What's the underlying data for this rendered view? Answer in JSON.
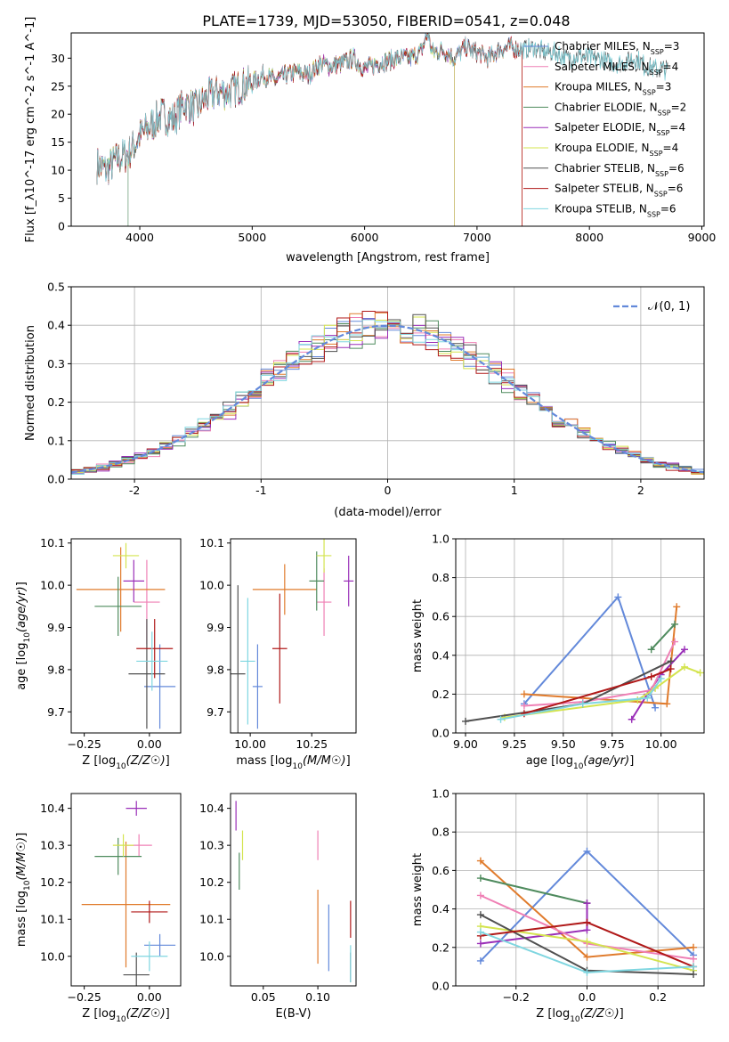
{
  "figure": {
    "title": "PLATE=1739, MJD=53050, FIBERID=0541, z=0.048"
  },
  "chart_data": [
    {
      "id": "spectrum",
      "type": "line",
      "xlabel": "wavelength [Angstrom, rest frame]",
      "ylabel": "Flux [f_λ10^-17 erg cm^-2 s^-1 A^-1]",
      "xlim": [
        3390,
        9020
      ],
      "ylim": [
        0,
        34.5
      ],
      "xticks": [
        4000,
        5000,
        6000,
        7000,
        8000,
        9000
      ],
      "yticks": [
        0,
        5,
        10,
        15,
        20,
        25,
        30
      ],
      "legend_position": "upper-right",
      "observed": {
        "color": "#808080",
        "x": [
          3620,
          3700,
          3800,
          3900,
          4000,
          4100,
          4200,
          4300,
          4400,
          4500,
          4600,
          4700,
          4800,
          4900,
          5000,
          5100,
          5200,
          5300,
          5400,
          5500,
          5600,
          5700,
          5800,
          5900,
          6000,
          6100,
          6200,
          6300,
          6400,
          6500,
          6563,
          6600,
          6700,
          6800,
          6900,
          7000,
          7100,
          7200,
          7300,
          7400,
          7500,
          7600,
          7700,
          7800,
          7900,
          8000,
          8100,
          8200,
          8300,
          8400,
          8500,
          8600,
          8700
        ],
        "values": [
          11,
          10,
          12,
          13,
          16,
          18,
          20,
          19,
          22,
          21,
          23,
          24,
          24,
          25,
          25.5,
          27,
          26,
          27,
          27.5,
          27,
          29,
          28.5,
          29,
          30,
          28,
          29,
          29.5,
          30,
          30,
          31,
          34.5,
          31,
          31.5,
          30,
          32,
          31,
          30,
          31.5,
          32,
          31.5,
          32,
          31,
          31,
          30,
          30.5,
          30,
          30,
          29,
          29,
          30,
          28.5,
          28,
          28
        ]
      },
      "series": [
        {
          "name": "Chabrier MILES, N_SSP=3",
          "color": "#6389da",
          "end_x": 7400
        },
        {
          "name": "Salpeter MILES, N_SSP=4",
          "color": "#ef80b5",
          "end_x": 7400
        },
        {
          "name": "Kroupa MILES, N_SSP=3",
          "color": "#e07b2c",
          "end_x": 7400
        },
        {
          "name": "Chabrier ELODIE, N_SSP=2",
          "color": "#4f8b5e",
          "end_x": 3900
        },
        {
          "name": "Salpeter ELODIE, N_SSP=4",
          "color": "#9a2fb8",
          "end_x": 6800
        },
        {
          "name": "Kroupa ELODIE, N_SSP=4",
          "color": "#d4e44f",
          "end_x": 6800
        },
        {
          "name": "Chabrier STELIB, N_SSP=6",
          "color": "#505050",
          "end_x": 8700
        },
        {
          "name": "Salpeter STELIB, N_SSP=6",
          "color": "#b01919",
          "end_x": 7400
        },
        {
          "name": "Kroupa STELIB, N_SSP=6",
          "color": "#7fd6e0",
          "end_x": 8700
        }
      ]
    },
    {
      "id": "residuals",
      "type": "line",
      "xlabel": "(data-model)/error",
      "ylabel": "Normed distribution",
      "xlim": [
        -2.5,
        2.5
      ],
      "ylim": [
        0,
        0.5
      ],
      "xticks": [
        -2,
        -1,
        0,
        1,
        2
      ],
      "yticks": [
        0.0,
        0.1,
        0.2,
        0.3,
        0.4,
        0.5
      ],
      "grid": true,
      "legend": "𝒩(0, 1)",
      "legend_position": "upper-right",
      "normal_curve": {
        "mean": 0,
        "sigma": 1,
        "color": "#6389da",
        "style": "dashed"
      },
      "histogram_bin_width": 0.1,
      "histogram_colors": [
        "#6389da",
        "#ef80b5",
        "#e07b2c",
        "#4f8b5e",
        "#9a2fb8",
        "#d4e44f",
        "#505050",
        "#b01919",
        "#7fd6e0"
      ]
    },
    {
      "id": "age-vs-metallicity",
      "type": "scatter",
      "xlabel": "Z [log10(Z/Z☉)]",
      "ylabel": "age [log10(age/yr)]",
      "xlim": [
        -0.3,
        0.12
      ],
      "ylim": [
        9.65,
        10.11
      ],
      "xticks": [
        -0.25,
        0.0
      ],
      "yticks": [
        9.7,
        9.8,
        9.9,
        10.0,
        10.1
      ],
      "points": [
        {
          "color": "#6389da",
          "x": 0.04,
          "xerr": 0.06,
          "y": 9.76,
          "yerr": 0.1
        },
        {
          "color": "#ef80b5",
          "x": -0.01,
          "xerr": 0.05,
          "y": 9.96,
          "yerr": 0.1
        },
        {
          "color": "#e07b2c",
          "x": -0.11,
          "xerr": 0.17,
          "y": 9.99,
          "yerr": 0.1
        },
        {
          "color": "#4f8b5e",
          "x": -0.12,
          "xerr": 0.09,
          "y": 9.95,
          "yerr": 0.07
        },
        {
          "color": "#9a2fb8",
          "x": -0.06,
          "xerr": 0.04,
          "y": 10.01,
          "yerr": 0.05
        },
        {
          "color": "#d4e44f",
          "x": -0.09,
          "xerr": 0.05,
          "y": 10.07,
          "yerr": 0.03
        },
        {
          "color": "#505050",
          "x": -0.01,
          "xerr": 0.07,
          "y": 9.79,
          "yerr": 0.13
        },
        {
          "color": "#b01919",
          "x": 0.02,
          "xerr": 0.07,
          "y": 9.85,
          "yerr": 0.07
        },
        {
          "color": "#7fd6e0",
          "x": 0.01,
          "xerr": 0.06,
          "y": 9.82,
          "yerr": 0.07
        }
      ]
    },
    {
      "id": "age-vs-mass",
      "type": "scatter",
      "xlabel": "mass [log10(M/M☉)]",
      "ylabel": "",
      "xlim": [
        9.92,
        10.43
      ],
      "ylim": [
        9.65,
        10.11
      ],
      "xticks": [
        10.0,
        10.25
      ],
      "yticks": [
        9.7,
        9.8,
        9.9,
        10.0,
        10.1
      ],
      "points": [
        {
          "color": "#6389da",
          "x": 10.03,
          "xerr": 0.02,
          "y": 9.76,
          "yerr": 0.1
        },
        {
          "color": "#ef80b5",
          "x": 10.3,
          "xerr": 0.03,
          "y": 9.96,
          "yerr": 0.08
        },
        {
          "color": "#e07b2c",
          "x": 10.14,
          "xerr": 0.13,
          "y": 9.99,
          "yerr": 0.06
        },
        {
          "color": "#4f8b5e",
          "x": 10.27,
          "xerr": 0.03,
          "y": 10.01,
          "yerr": 0.07
        },
        {
          "color": "#9a2fb8",
          "x": 10.4,
          "xerr": 0.02,
          "y": 10.01,
          "yerr": 0.06
        },
        {
          "color": "#d4e44f",
          "x": 10.3,
          "xerr": 0.03,
          "y": 10.07,
          "yerr": 0.04
        },
        {
          "color": "#505050",
          "x": 9.95,
          "xerr": 0.03,
          "y": 9.79,
          "yerr": 0.21
        },
        {
          "color": "#b01919",
          "x": 10.12,
          "xerr": 0.03,
          "y": 9.85,
          "yerr": 0.13
        },
        {
          "color": "#7fd6e0",
          "x": 9.99,
          "xerr": 0.03,
          "y": 9.82,
          "yerr": 0.15
        }
      ]
    },
    {
      "id": "weight-vs-age",
      "type": "line",
      "xlabel": "age [log10(age/yr)]",
      "ylabel": "mass weight",
      "xlim": [
        8.95,
        10.22
      ],
      "ylim": [
        0,
        1
      ],
      "xticks": [
        9.0,
        9.25,
        9.5,
        9.75,
        10.0
      ],
      "yticks": [
        0.0,
        0.2,
        0.4,
        0.6,
        0.8,
        1.0
      ],
      "grid": true,
      "series": [
        {
          "color": "#6389da",
          "x": [
            9.3,
            9.78,
            9.97
          ],
          "values": [
            0.15,
            0.7,
            0.13
          ]
        },
        {
          "color": "#e07b2c",
          "x": [
            9.3,
            10.03,
            10.08
          ],
          "values": [
            0.2,
            0.15,
            0.65
          ]
        },
        {
          "color": "#4f8b5e",
          "x": [
            9.95,
            10.07
          ],
          "values": [
            0.43,
            0.56
          ]
        },
        {
          "color": "#9a2fb8",
          "x": [
            9.85,
            9.93,
            10.0,
            10.12
          ],
          "values": [
            0.07,
            0.2,
            0.3,
            0.43
          ]
        },
        {
          "color": "#ef80b5",
          "x": [
            9.3,
            9.6,
            9.95,
            10.07
          ],
          "values": [
            0.14,
            0.16,
            0.22,
            0.47
          ]
        },
        {
          "color": "#d4e44f",
          "x": [
            9.2,
            9.88,
            9.97,
            10.12,
            10.2
          ],
          "values": [
            0.08,
            0.17,
            0.23,
            0.34,
            0.31
          ]
        },
        {
          "color": "#505050",
          "x": [
            9.0,
            9.6,
            10.05
          ],
          "values": [
            0.06,
            0.15,
            0.37
          ]
        },
        {
          "color": "#b01919",
          "x": [
            9.3,
            9.95,
            10.05
          ],
          "values": [
            0.1,
            0.29,
            0.33
          ]
        },
        {
          "color": "#7fd6e0",
          "x": [
            9.18,
            9.6,
            9.93,
            10.0
          ],
          "values": [
            0.07,
            0.15,
            0.18,
            0.28
          ]
        }
      ]
    },
    {
      "id": "mass-vs-metallicity",
      "type": "scatter",
      "xlabel": "Z [log10(Z/Z☉)]",
      "ylabel": "mass [log10(M/M☉)]",
      "xlim": [
        -0.3,
        0.12
      ],
      "ylim": [
        9.92,
        10.44
      ],
      "xticks": [
        -0.25,
        0.0
      ],
      "yticks": [
        10.0,
        10.1,
        10.2,
        10.3,
        10.4
      ],
      "points": [
        {
          "color": "#6389da",
          "x": 0.04,
          "xerr": 0.06,
          "y": 10.03,
          "yerr": 0.03
        },
        {
          "color": "#ef80b5",
          "x": -0.04,
          "xerr": 0.05,
          "y": 10.3,
          "yerr": 0.03
        },
        {
          "color": "#e07b2c",
          "x": -0.09,
          "xerr": 0.17,
          "y": 10.14,
          "yerr": 0.17
        },
        {
          "color": "#4f8b5e",
          "x": -0.12,
          "xerr": 0.09,
          "y": 10.27,
          "yerr": 0.05
        },
        {
          "color": "#9a2fb8",
          "x": -0.05,
          "xerr": 0.04,
          "y": 10.4,
          "yerr": 0.02
        },
        {
          "color": "#d4e44f",
          "x": -0.1,
          "xerr": 0.04,
          "y": 10.3,
          "yerr": 0.03
        },
        {
          "color": "#505050",
          "x": -0.05,
          "xerr": 0.05,
          "y": 9.95,
          "yerr": 0.06
        },
        {
          "color": "#b01919",
          "x": 0.0,
          "xerr": 0.07,
          "y": 10.12,
          "yerr": 0.03
        },
        {
          "color": "#7fd6e0",
          "x": 0.0,
          "xerr": 0.07,
          "y": 10.0,
          "yerr": 0.04
        }
      ]
    },
    {
      "id": "mass-vs-ebv",
      "type": "scatter",
      "xlabel": "E(B-V)",
      "ylabel": "",
      "xlim": [
        0.02,
        0.135
      ],
      "ylim": [
        9.92,
        10.44
      ],
      "xticks": [
        0.05,
        0.1
      ],
      "yticks": [
        10.0,
        10.1,
        10.2,
        10.3,
        10.4
      ],
      "points": [
        {
          "color": "#6389da",
          "x": 0.11,
          "y": 10.05,
          "yerr": 0.09
        },
        {
          "color": "#ef80b5",
          "x": 0.1,
          "y": 10.3,
          "yerr": 0.04
        },
        {
          "color": "#e07b2c",
          "x": 0.1,
          "y": 10.08,
          "yerr": 0.1
        },
        {
          "color": "#4f8b5e",
          "x": 0.028,
          "y": 10.23,
          "yerr": 0.05
        },
        {
          "color": "#9a2fb8",
          "x": 0.025,
          "y": 10.38,
          "yerr": 0.04
        },
        {
          "color": "#d4e44f",
          "x": 0.031,
          "y": 10.3,
          "yerr": 0.04
        },
        {
          "color": "#505050",
          "x": 0.13,
          "y": 9.97,
          "yerr": 0.04
        },
        {
          "color": "#b01919",
          "x": 0.13,
          "y": 10.1,
          "yerr": 0.05
        },
        {
          "color": "#7fd6e0",
          "x": 0.13,
          "y": 9.98,
          "yerr": 0.05
        }
      ]
    },
    {
      "id": "weight-vs-metallicity",
      "type": "line",
      "xlabel": "Z [log10(Z/Z☉)]",
      "ylabel": "mass weight",
      "xlim": [
        -0.37,
        0.33
      ],
      "ylim": [
        0,
        1
      ],
      "xticks": [
        -0.2,
        0.0,
        0.2
      ],
      "yticks": [
        0.0,
        0.2,
        0.4,
        0.6,
        0.8,
        1.0
      ],
      "grid": true,
      "series": [
        {
          "color": "#6389da",
          "x": [
            -0.3,
            0.0,
            0.3
          ],
          "values": [
            0.13,
            0.7,
            0.16
          ]
        },
        {
          "color": "#e07b2c",
          "x": [
            -0.3,
            0.0,
            0.3
          ],
          "values": [
            0.65,
            0.15,
            0.2
          ]
        },
        {
          "color": "#4f8b5e",
          "x": [
            -0.3,
            0.0
          ],
          "values": [
            0.56,
            0.43
          ]
        },
        {
          "color": "#9a2fb8",
          "x": [
            -0.3,
            0.0,
            0.0
          ],
          "values": [
            0.22,
            0.29,
            0.43
          ]
        },
        {
          "color": "#ef80b5",
          "x": [
            -0.3,
            0.0,
            0.3
          ],
          "values": [
            0.47,
            0.22,
            0.14
          ]
        },
        {
          "color": "#d4e44f",
          "x": [
            -0.3,
            0.0,
            0.3
          ],
          "values": [
            0.31,
            0.23,
            0.08
          ]
        },
        {
          "color": "#505050",
          "x": [
            -0.3,
            0.0,
            0.3
          ],
          "values": [
            0.37,
            0.08,
            0.06
          ]
        },
        {
          "color": "#b01919",
          "x": [
            -0.3,
            0.0,
            0.3
          ],
          "values": [
            0.26,
            0.33,
            0.1
          ]
        },
        {
          "color": "#7fd6e0",
          "x": [
            -0.3,
            0.0,
            0.3
          ],
          "values": [
            0.28,
            0.07,
            0.1
          ]
        }
      ]
    }
  ]
}
